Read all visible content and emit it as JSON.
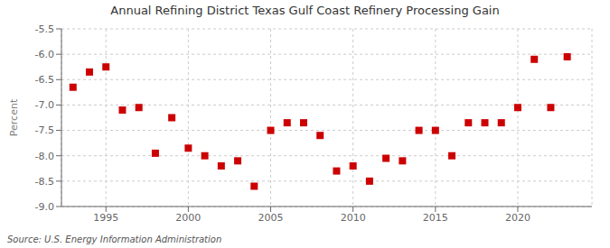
{
  "chart_data": {
    "type": "scatter",
    "title": "Annual Refining District Texas Gulf Coast Refinery Processing Gain",
    "y_label": "Percent",
    "annotations": [
      "Source: U.S. Energy Information Administration"
    ],
    "x": [
      1993,
      1994,
      1995,
      1996,
      1997,
      1998,
      1999,
      2000,
      2001,
      2002,
      2003,
      2004,
      2005,
      2006,
      2007,
      2008,
      2009,
      2010,
      2011,
      2012,
      2013,
      2014,
      2015,
      2016,
      2017,
      2018,
      2019,
      2020,
      2021,
      2022,
      2023
    ],
    "values": [
      -6.65,
      -6.35,
      -6.25,
      -7.1,
      -7.05,
      -7.95,
      -7.25,
      -7.85,
      -8.0,
      -8.2,
      -8.1,
      -8.6,
      -7.5,
      -7.35,
      -7.35,
      -7.6,
      -8.3,
      -8.2,
      -8.5,
      -8.05,
      -8.1,
      -7.5,
      -7.5,
      -8.0,
      -7.35,
      -7.35,
      -7.35,
      -7.05,
      -6.1,
      -7.05,
      -6.05
    ],
    "color": "#cc0000",
    "marker": "square",
    "xlim": [
      1992.3,
      2024.5
    ],
    "xticks": [
      1995,
      2000,
      2005,
      2010,
      2015,
      2020
    ],
    "ylim": [
      -9.0,
      -5.5
    ],
    "yticks": [
      {
        "value": -9.0,
        "label": "-9.0"
      },
      -8.5,
      {
        "value": -8.0,
        "label": "-8.0"
      },
      -7.5,
      {
        "value": -7.0,
        "label": "-7.0"
      },
      -6.5,
      {
        "value": -6.0,
        "label": "-6.0"
      },
      -5.5
    ],
    "grid": true
  }
}
